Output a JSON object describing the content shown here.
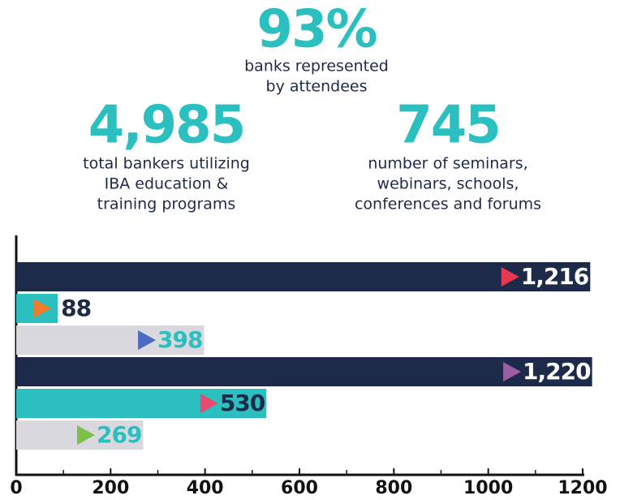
{
  "stats": [
    {
      "value": "93%",
      "lines": [
        "banks represented",
        "by attendees"
      ]
    },
    {
      "value": "4,985",
      "lines": [
        "total bankers utilizing",
        "IBA education &",
        "training programs"
      ]
    },
    {
      "value": "745",
      "lines": [
        "number of seminars,",
        "webinars, schools,",
        "conferences and forums"
      ]
    }
  ],
  "chart_data": {
    "type": "hbar",
    "values": [
      1216,
      88,
      398,
      1220,
      530,
      269
    ],
    "value_labels": [
      "1,216",
      "88",
      "398",
      "1,220",
      "530",
      "269"
    ],
    "colors": [
      "#1e2a4a",
      "#2bbfbf",
      "#d9d8df",
      "#1e2a4a",
      "#2bbfbf",
      "#d9d8df"
    ],
    "marker_colors": [
      "#e8384f",
      "#f07d2a",
      "#4a6bbf",
      "#9b5ea2",
      "#e84a6f",
      "#7cc24a"
    ],
    "label_colors": [
      "#ffffff",
      "#1e2a4a",
      "#2bbfbf",
      "#ffffff",
      "#1e2a4a",
      "#2bbfbf"
    ],
    "xlim": [
      0,
      1200
    ],
    "xticks": [
      0,
      200,
      400,
      600,
      800,
      1000,
      1200
    ],
    "minor_xticks": [
      100,
      300,
      500,
      700,
      900,
      1100
    ]
  }
}
